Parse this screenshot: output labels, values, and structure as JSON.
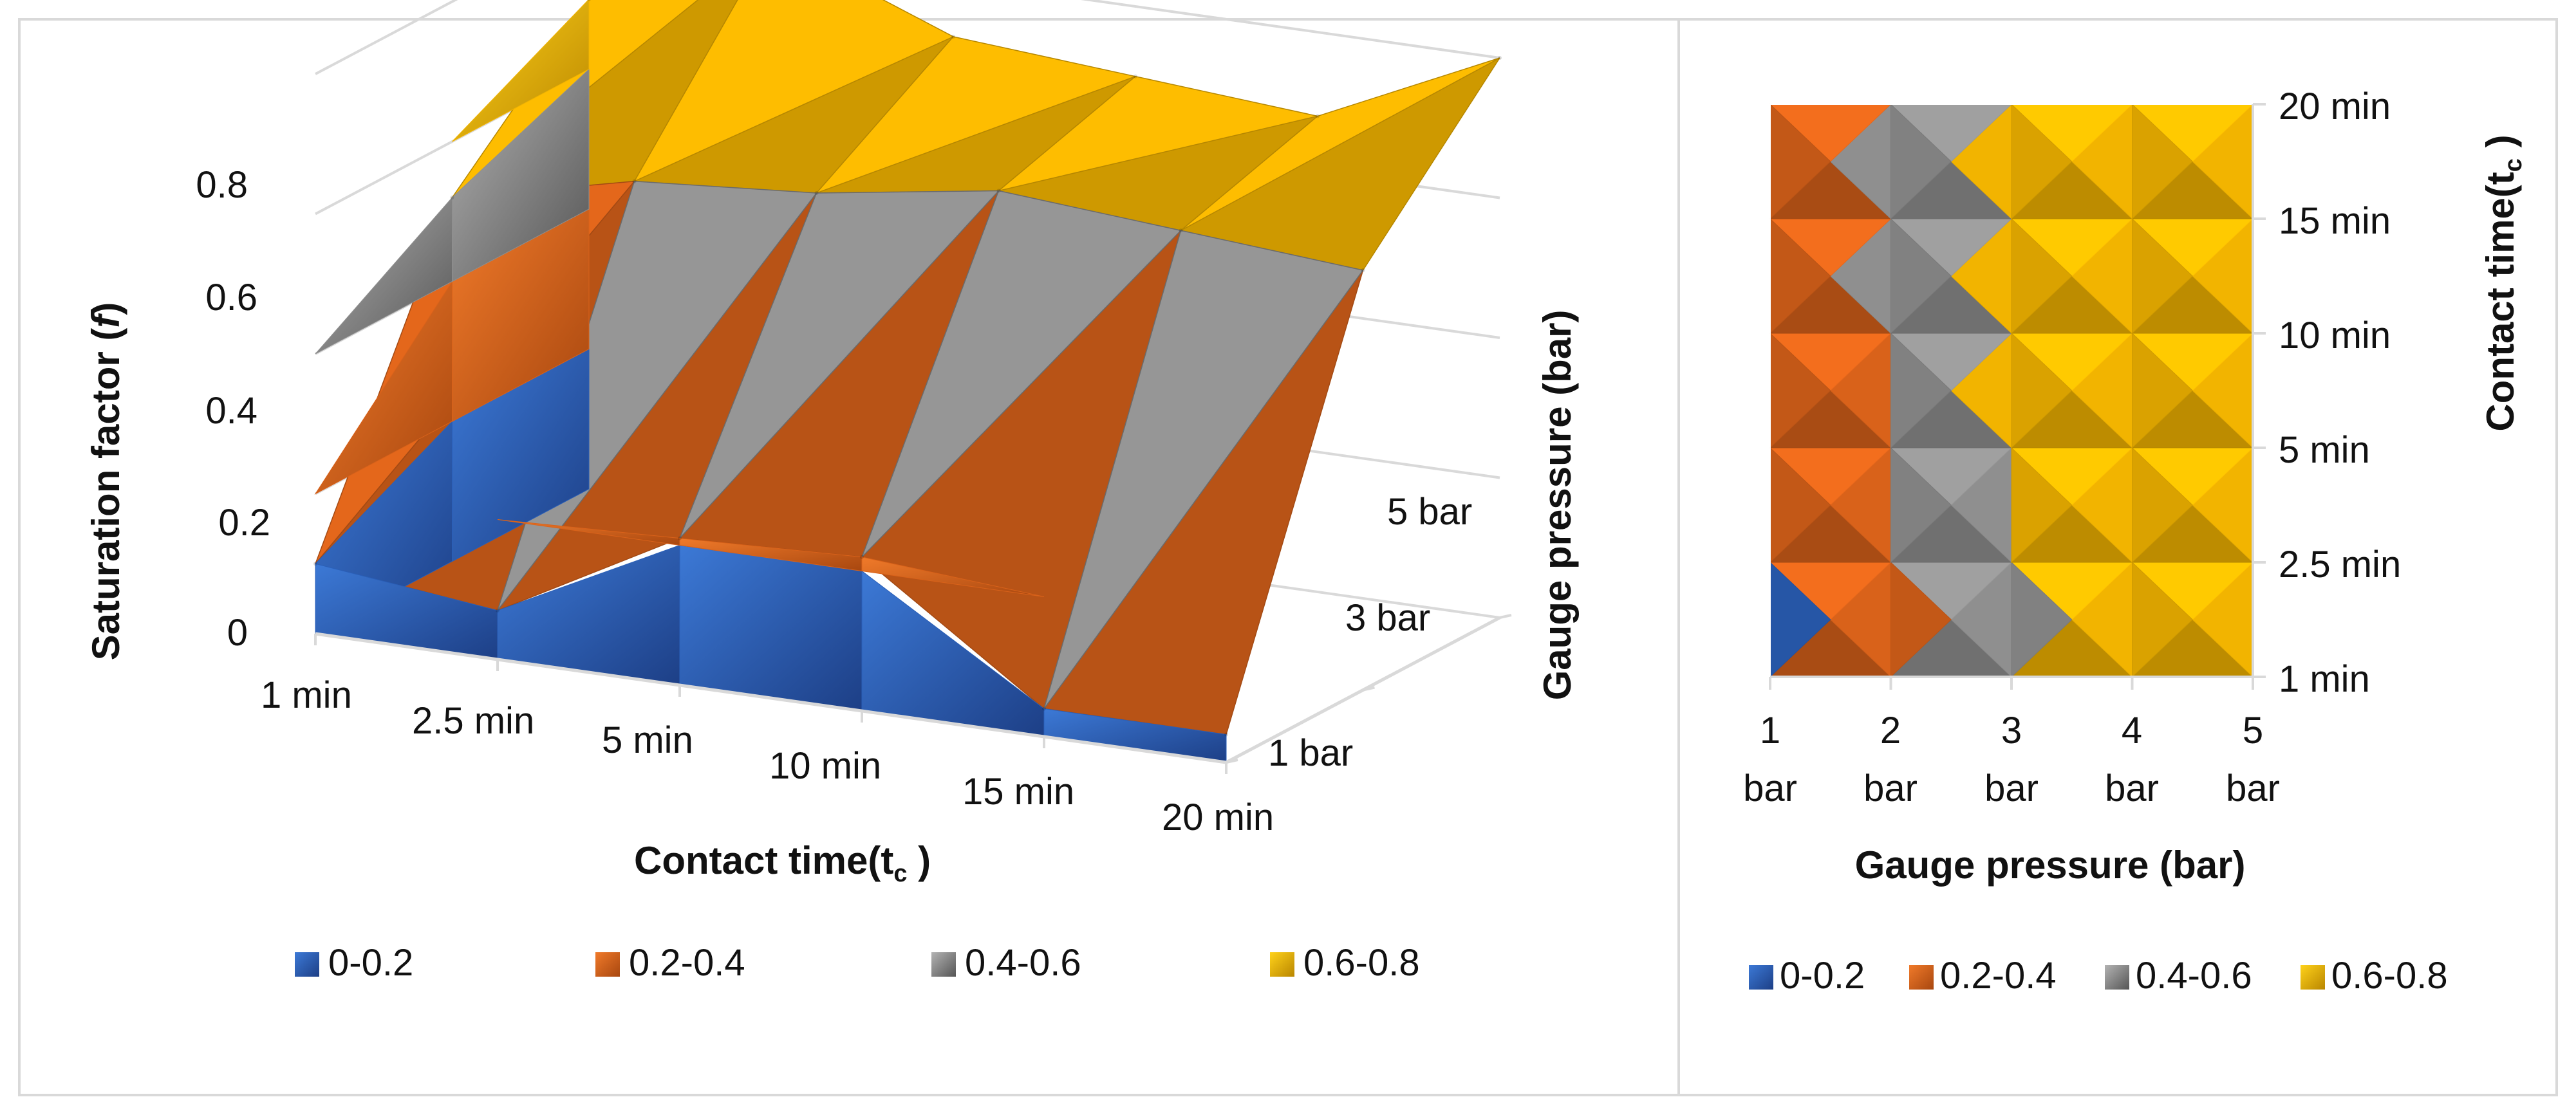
{
  "colors": {
    "band_0_02": "#2a5fb8",
    "band_02_04": "#d9621a",
    "band_04_06": "#8f8f8f",
    "band_06_08": "#f2b400",
    "panel_border": "#d9d9d9",
    "axis": "#d9d9d9"
  },
  "chart_data": [
    {
      "type": "surface",
      "title": "",
      "xlabel": "Contact time(tc )",
      "xlabel_main": "Contact time(t",
      "xlabel_sub": "c",
      "xlabel_close": " )",
      "ylabel": "Saturation factor (f)",
      "ylabel_main": "Saturation factor (",
      "ylabel_italic": "f",
      "ylabel_close": ")",
      "depthlabel": "Gauge pressure (bar)",
      "x_categories": [
        "1 min",
        "2.5 min",
        "5 min",
        "10 min",
        "15 min",
        "20 min"
      ],
      "depth_categories": [
        "1 bar",
        "3 bar",
        "5 bar"
      ],
      "z_ticks": [
        "0",
        "0.2",
        "0.4",
        "0.6",
        "0.8"
      ],
      "zlim": [
        0,
        0.8
      ],
      "grid": true,
      "legend_position": "bottom",
      "legend": [
        "0-0.2",
        "0.2-0.4",
        "0.4-0.6",
        "0.6-0.8"
      ],
      "series": [
        {
          "name": "1 bar",
          "values": [
            0.1,
            0.07,
            0.21,
            0.22,
            0.04,
            0.04
          ]
        },
        {
          "name": "3 bar",
          "values": [
            0.52,
            0.58,
            0.6,
            0.64,
            0.62,
            0.6
          ]
        },
        {
          "name": "5 bar",
          "values": [
            0.7,
            0.82,
            0.72,
            0.7,
            0.68,
            0.8
          ]
        }
      ]
    },
    {
      "type": "contour",
      "title": "",
      "xlabel": "Gauge pressure (bar)",
      "ylabel": "Contact time(tc )",
      "ylabel_main": "Contact time(t",
      "ylabel_sub": "c",
      "ylabel_close": " )",
      "x_categories": [
        "1 bar",
        "2 bar",
        "3 bar",
        "4 bar",
        "5 bar"
      ],
      "x_tick_numbers": [
        "1",
        "2",
        "3",
        "4",
        "5"
      ],
      "x_tick_units": [
        "bar",
        "bar",
        "bar",
        "bar",
        "bar"
      ],
      "y_categories": [
        "1 min",
        "2.5 min",
        "5 min",
        "10 min",
        "15 min",
        "20 min"
      ],
      "legend_position": "bottom",
      "legend": [
        "0-0.2",
        "0.2-0.4",
        "0.4-0.6",
        "0.6-0.8"
      ],
      "z": [
        [
          0.1,
          0.35,
          0.55,
          0.68,
          0.7
        ],
        [
          0.15,
          0.38,
          0.58,
          0.7,
          0.72
        ],
        [
          0.22,
          0.4,
          0.65,
          0.72,
          0.7
        ],
        [
          0.28,
          0.45,
          0.7,
          0.78,
          0.72
        ],
        [
          0.3,
          0.48,
          0.72,
          0.74,
          0.7
        ],
        [
          0.3,
          0.5,
          0.68,
          0.72,
          0.68
        ]
      ]
    }
  ]
}
